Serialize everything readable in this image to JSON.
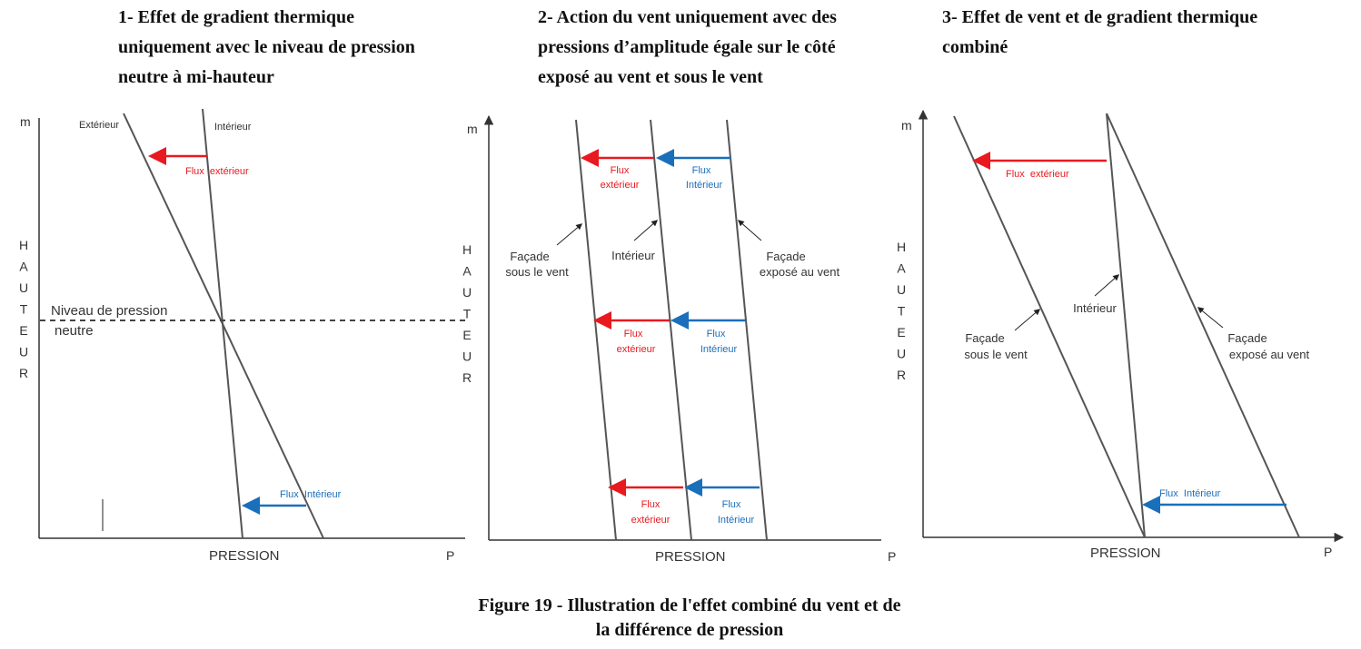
{
  "panels": [
    {
      "heading_lines": [
        "1- Effet de gradient thermique",
        "uniquement avec le niveau de pression",
        "neutre à mi-hauteur"
      ],
      "y_axis_unit": "m",
      "x_axis_unit": "P",
      "y_axis_label": "HAUTEUR",
      "x_axis_label": "PRESSION",
      "labels": {
        "exterieur": "Extérieur",
        "interieur": "Intérieur",
        "flux_ext_top": "Flux  extérieur",
        "flux_int_bottom": "Flux  Intérieur",
        "neutral_line1": "Niveau de pression",
        "neutral_line2": "neutre"
      }
    },
    {
      "heading_lines": [
        "2- Action du vent uniquement avec des",
        "pressions d’amplitude égale sur le côté",
        "exposé au vent et sous le vent"
      ],
      "y_axis_unit": "m",
      "x_axis_unit": "P",
      "y_axis_label": "HAUTEUR",
      "x_axis_label": "PRESSION",
      "labels": {
        "facade_sous_1": "Façade",
        "facade_sous_2": "sous le vent",
        "interieur": "Intérieur",
        "facade_expose_1": "Façade",
        "facade_expose_2": "exposé au vent",
        "flux_label": "Flux",
        "exterieur_word": "extérieur",
        "interieur_word": "Intérieur"
      }
    },
    {
      "heading_lines": [
        "3- Effet de vent et de gradient thermique",
        "combiné"
      ],
      "y_axis_unit": "m",
      "x_axis_unit": "P",
      "y_axis_label": "HAUTEUR",
      "x_axis_label": "PRESSION",
      "labels": {
        "flux_ext_top": "Flux  extérieur",
        "interieur": "Intérieur",
        "facade_sous_1": "Façade",
        "facade_sous_2": "sous le vent",
        "facade_expose_1": "Façade",
        "facade_expose_2": "exposé au vent",
        "flux_int_bottom": "Flux  Intérieur"
      }
    }
  ],
  "colors": {
    "axis": "#333333",
    "lines": "#555555",
    "outflow": "#e8191f",
    "inflow": "#1a6fba",
    "text": "#333333"
  },
  "caption_lines": [
    "Figure 19 - Illustration de l'effet combiné du vent et de",
    "la différence de pression"
  ]
}
